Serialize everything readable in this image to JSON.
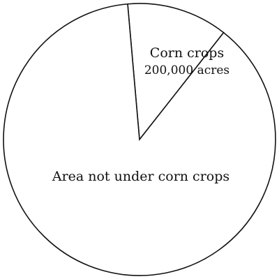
{
  "chart_data": {
    "type": "pie",
    "title": "",
    "slices": [
      {
        "label": "Corn crops",
        "sublabel": "200,000 acres",
        "fraction": 0.12
      },
      {
        "label": "Area not under corn crops",
        "sublabel": "",
        "fraction": 0.88
      }
    ],
    "start_angle_deg": 355,
    "direction": "clockwise",
    "colors": {
      "fill": "#ffffff",
      "stroke": "#111111"
    }
  }
}
